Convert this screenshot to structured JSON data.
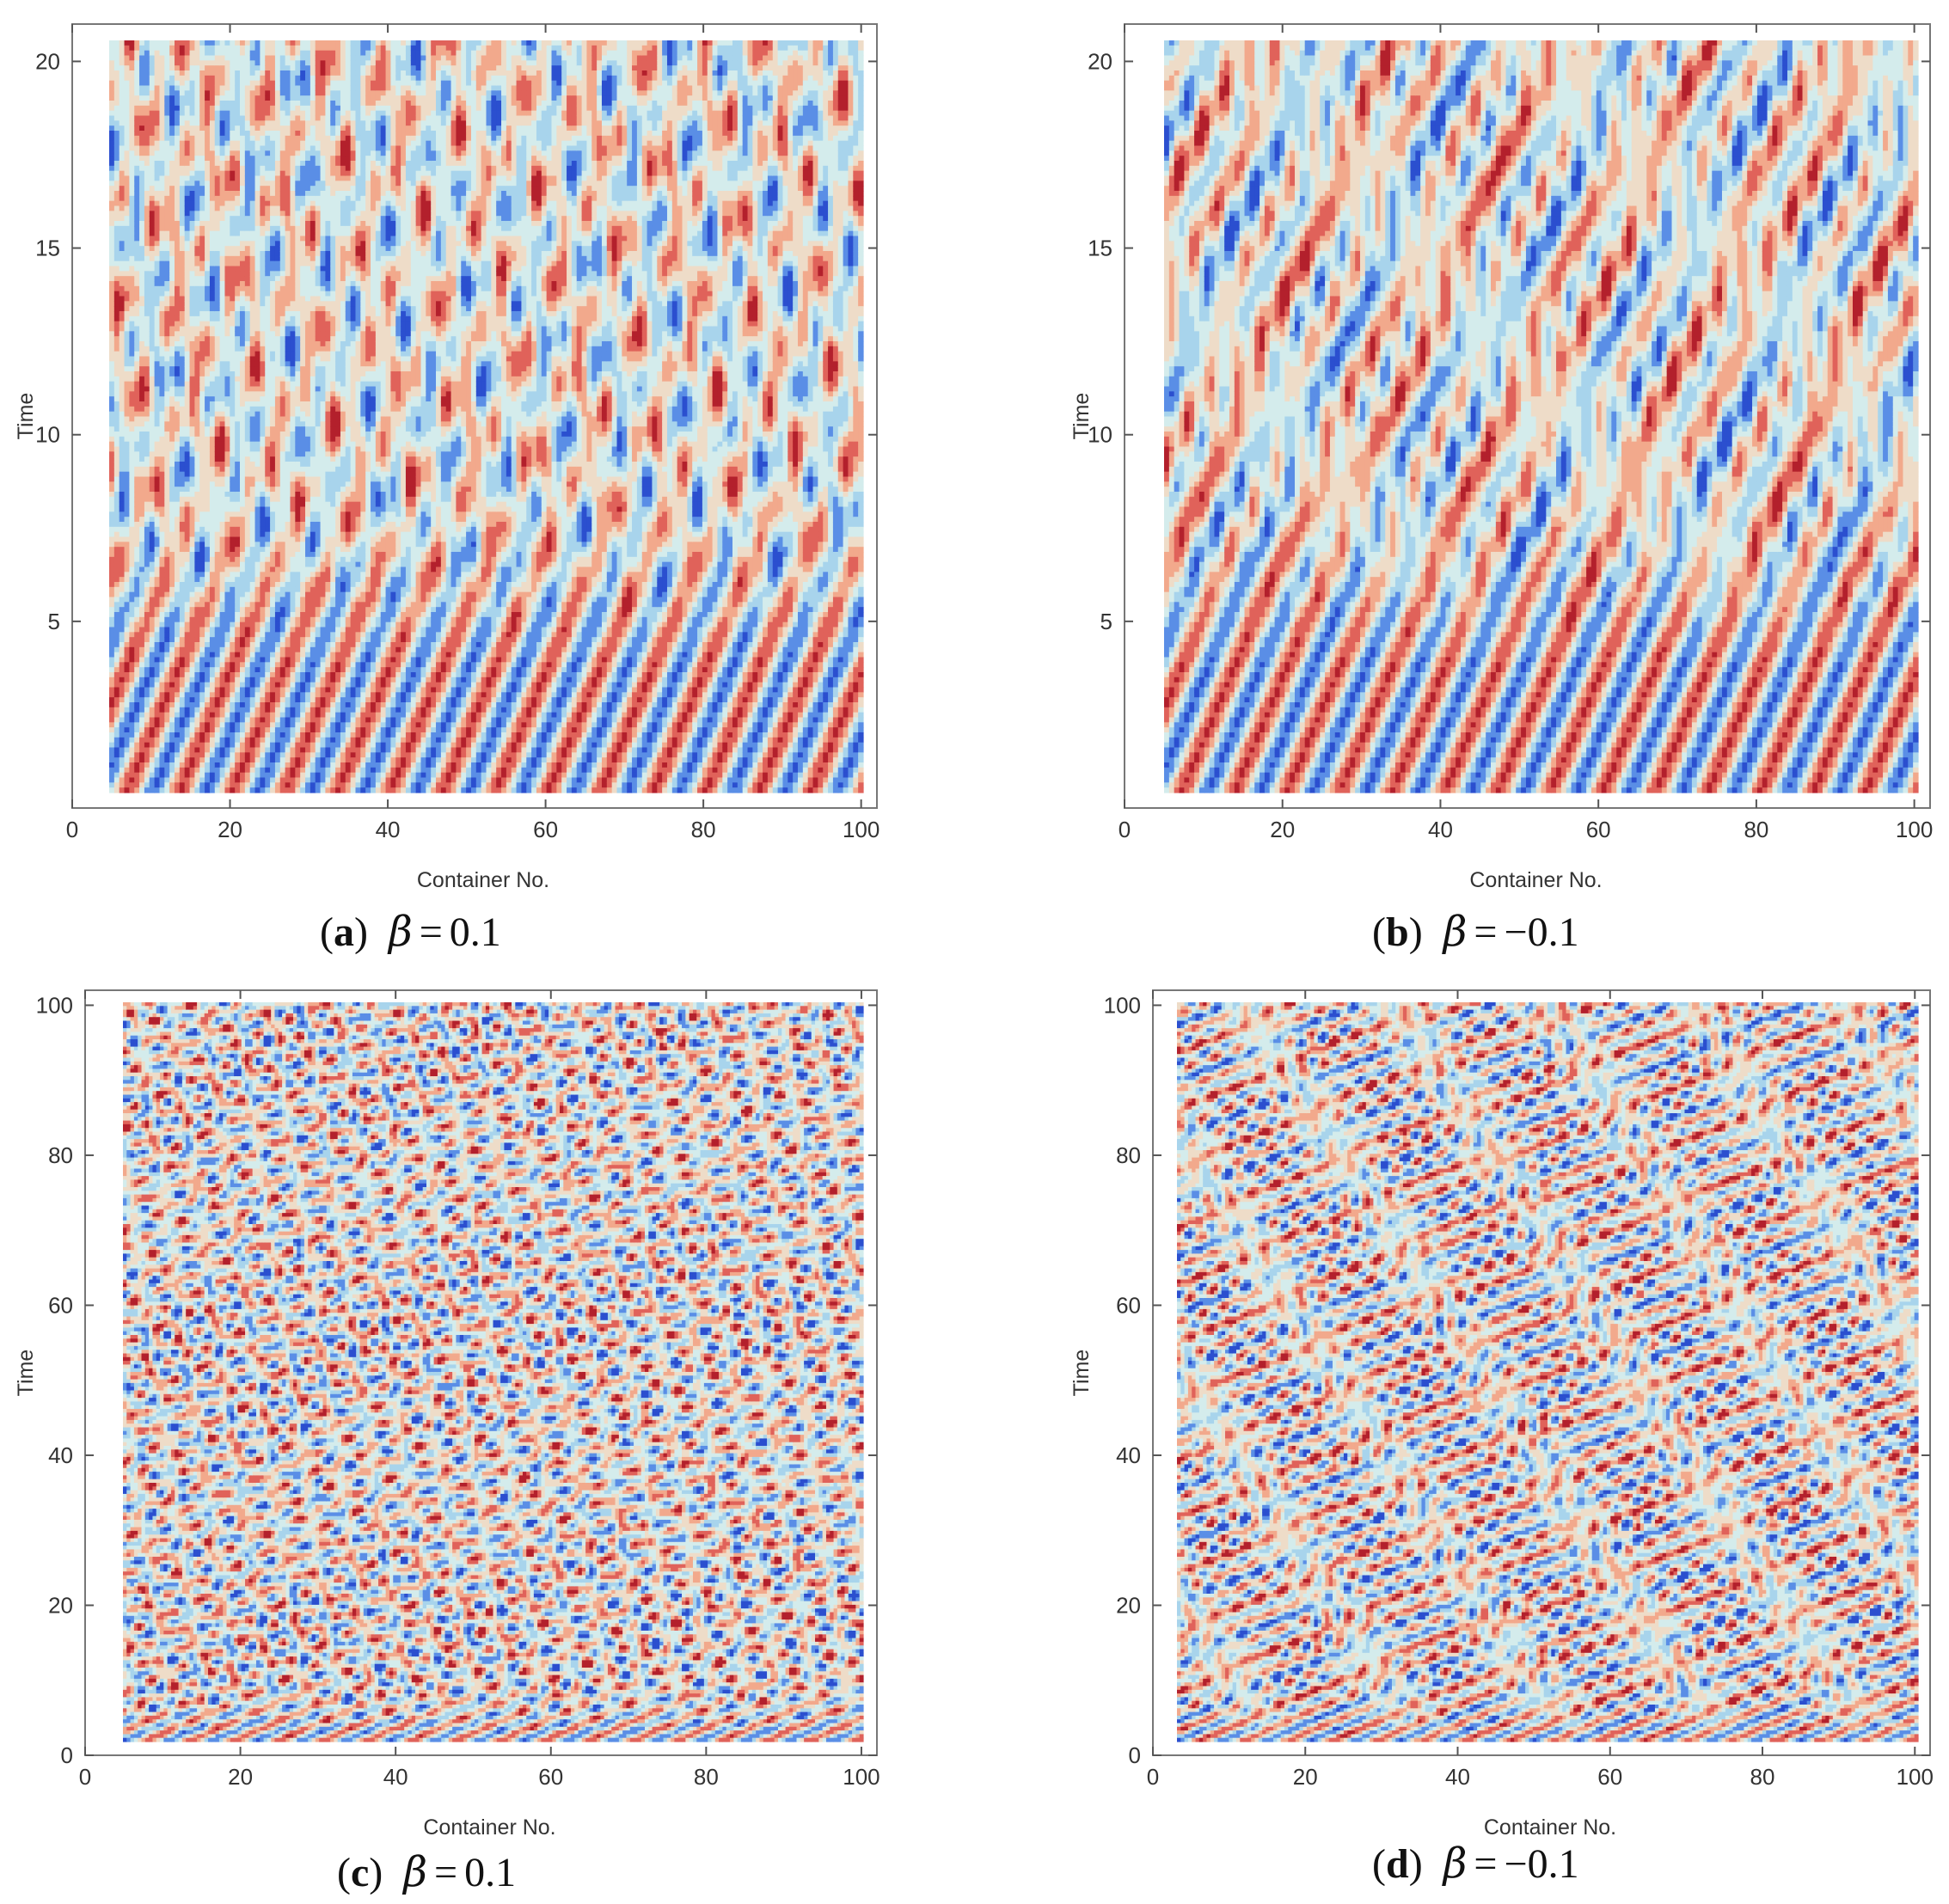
{
  "chart_data": [
    {
      "type": "heatmap",
      "panel_label": "a",
      "caption_beta": "β",
      "caption_equals": "=",
      "caption_value": "0.1",
      "xlabel": "Container No.",
      "ylabel": "Time",
      "xlim": [
        0,
        102
      ],
      "ylim": [
        0,
        21
      ],
      "x_ticks": [
        "0",
        "20",
        "40",
        "60",
        "80",
        "100"
      ],
      "y_ticks": [
        "5",
        "10",
        "15",
        "20"
      ],
      "colormap": [
        "#2b4fcf",
        "#5a8ee6",
        "#a8d4ec",
        "#d4ecec",
        "#eedcc8",
        "#f2a98c",
        "#e0625a",
        "#b3202c"
      ],
      "sign_of_beta": 1
    },
    {
      "type": "heatmap",
      "panel_label": "b",
      "caption_beta": "β",
      "caption_equals": "=",
      "caption_value": "−0.1",
      "xlabel": "Container No.",
      "ylabel": "Time",
      "xlim": [
        0,
        102
      ],
      "ylim": [
        0,
        21
      ],
      "x_ticks": [
        "0",
        "20",
        "40",
        "60",
        "80",
        "100"
      ],
      "y_ticks": [
        "5",
        "10",
        "15",
        "20"
      ],
      "colormap": [
        "#2b4fcf",
        "#5a8ee6",
        "#a8d4ec",
        "#d4ecec",
        "#eedcc8",
        "#f2a98c",
        "#e0625a",
        "#b3202c"
      ],
      "sign_of_beta": -1
    },
    {
      "type": "heatmap",
      "panel_label": "c",
      "caption_beta": "β",
      "caption_equals": "=",
      "caption_value": "0.1",
      "xlabel": "Container No.",
      "ylabel": "Time",
      "xlim": [
        0,
        102
      ],
      "ylim": [
        0,
        102
      ],
      "x_ticks": [
        "0",
        "20",
        "40",
        "60",
        "80",
        "100"
      ],
      "y_ticks": [
        "0",
        "20",
        "40",
        "60",
        "80",
        "100"
      ],
      "colormap": [
        "#2b4fcf",
        "#5a8ee6",
        "#a8d4ec",
        "#d4ecec",
        "#eedcc8",
        "#f2a98c",
        "#e0625a",
        "#b3202c"
      ],
      "sign_of_beta": 1
    },
    {
      "type": "heatmap",
      "panel_label": "d",
      "caption_beta": "β",
      "caption_equals": "=",
      "caption_value": "−0.1",
      "xlabel": "Container No.",
      "ylabel": "Time",
      "xlim": [
        0,
        102
      ],
      "ylim": [
        0,
        102
      ],
      "x_ticks": [
        "0",
        "20",
        "40",
        "60",
        "80",
        "100"
      ],
      "y_ticks": [
        "0",
        "20",
        "40",
        "60",
        "80",
        "100"
      ],
      "colormap": [
        "#2b4fcf",
        "#5a8ee6",
        "#a8d4ec",
        "#d4ecec",
        "#eedcc8",
        "#f2a98c",
        "#e0625a",
        "#b3202c"
      ],
      "sign_of_beta": -1
    }
  ]
}
